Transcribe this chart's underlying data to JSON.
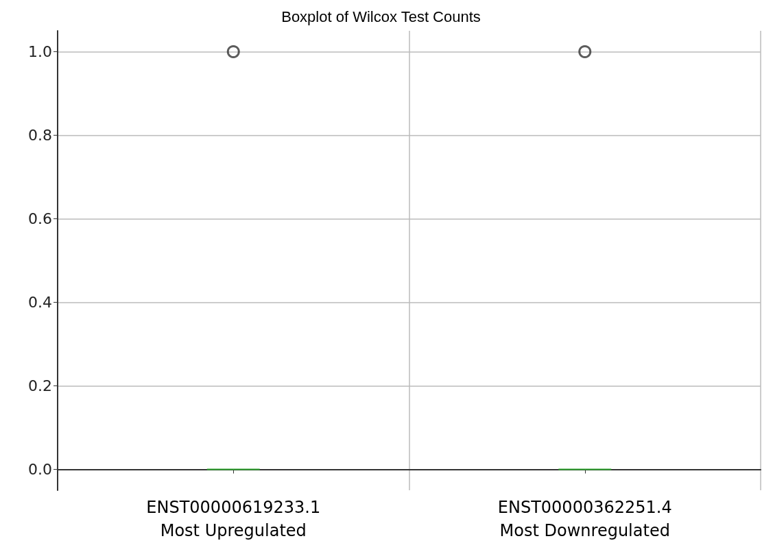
{
  "chart_data": {
    "type": "box",
    "title": "Boxplot of Wilcox Test Counts",
    "categories": [
      "ENST00000619233.1\nMost Upregulated",
      "ENST00000362251.4\nMost Downregulated"
    ],
    "boxes": [
      {
        "low": 0,
        "q1": 0,
        "median": 0,
        "q3": 0,
        "high": 0,
        "outliers": [
          1
        ]
      },
      {
        "low": 0,
        "q1": 0,
        "median": 0,
        "q3": 0,
        "high": 0,
        "outliers": [
          1
        ]
      }
    ],
    "color": "#2ca02c",
    "ylim": [
      -0.05,
      1.05
    ],
    "yticks": [
      {
        "value": 0,
        "label": "0.0"
      },
      {
        "value": 0.2,
        "label": "0.2"
      },
      {
        "value": 0.4,
        "label": "0.4"
      },
      {
        "value": 0.6,
        "label": "0.6"
      },
      {
        "value": 0.8,
        "label": "0.8"
      },
      {
        "value": 1,
        "label": "1.0"
      }
    ],
    "grid": true
  }
}
